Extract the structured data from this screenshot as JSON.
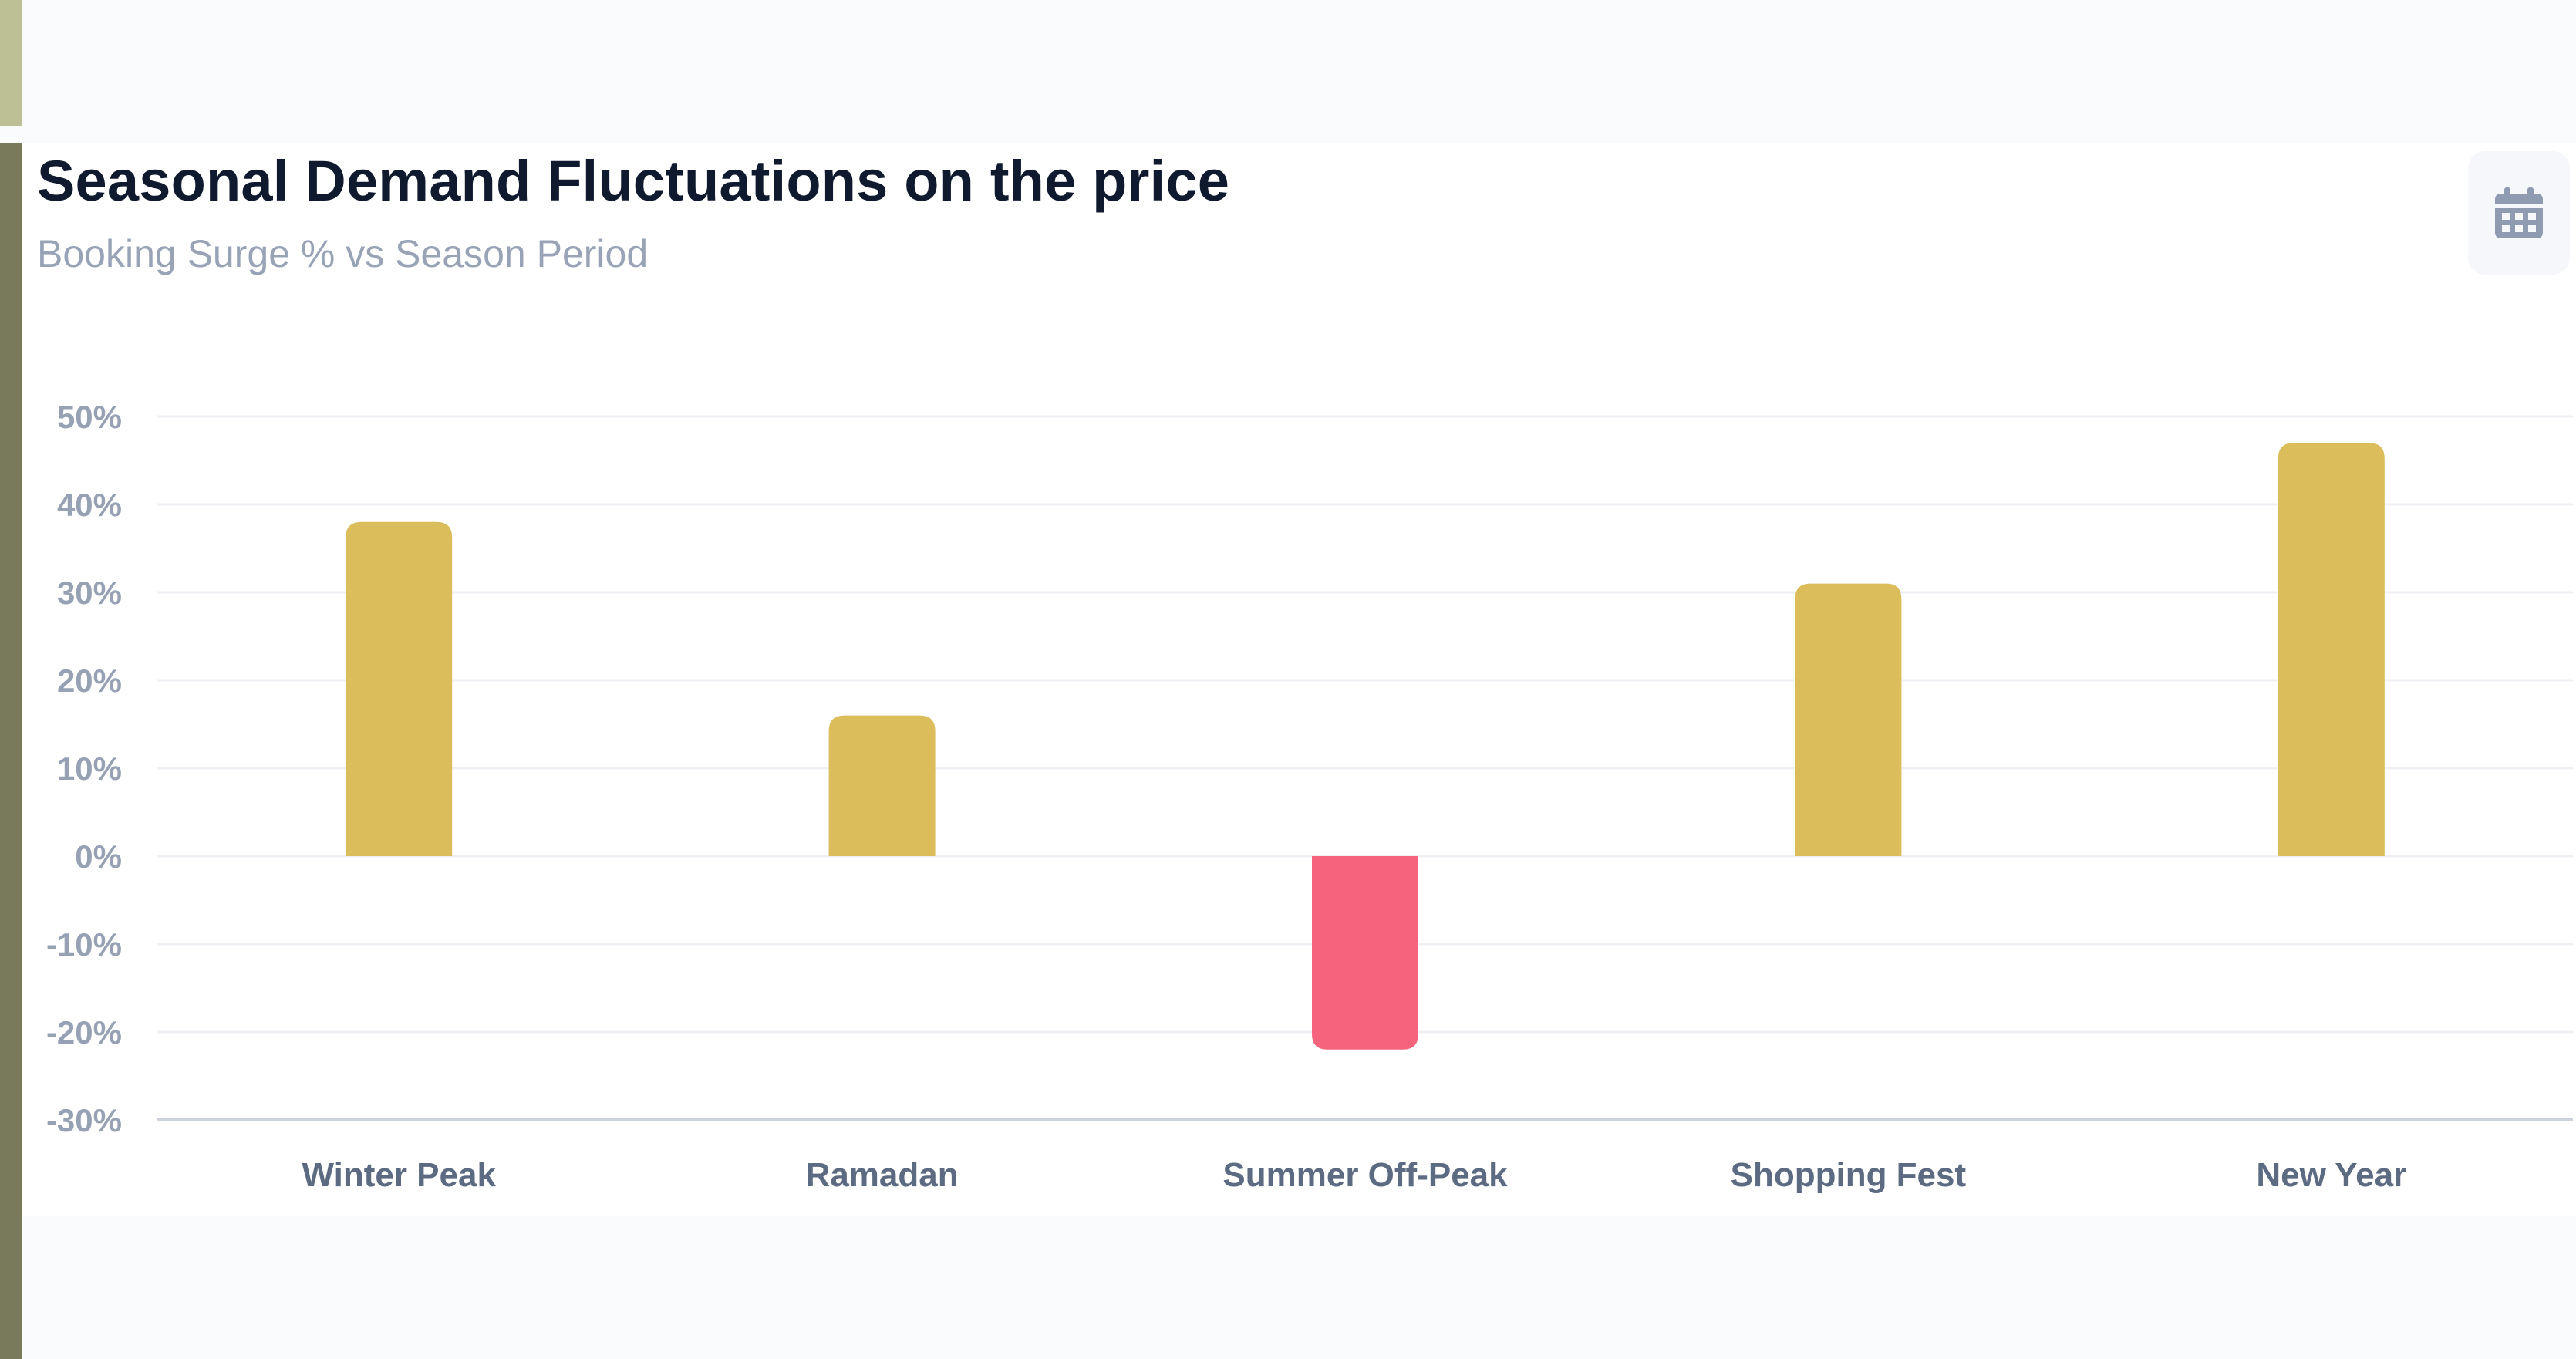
{
  "header": {
    "title": "Seasonal Demand Fluctuations on the price",
    "subtitle": "Booking Surge % vs Season Period",
    "calendar_icon": "calendar-icon"
  },
  "colors": {
    "positive": "#dcbd5c",
    "negative": "#f5637d",
    "tick_text": "#96a1b4",
    "category_text": "#5d6b82",
    "grid": "#eef0f4",
    "baseline": "#cdd3dd",
    "icon": "#8f9bb0"
  },
  "chart_data": {
    "type": "bar",
    "title": "Seasonal Demand Fluctuations on the price",
    "subtitle": "Booking Surge % vs Season Period",
    "xlabel": "",
    "ylabel": "",
    "categories": [
      "Winter Peak",
      "Ramadan",
      "Summer Off-Peak",
      "Shopping Fest",
      "New Year"
    ],
    "values": [
      38,
      16,
      -22,
      31,
      47
    ],
    "unit": "%",
    "ylim": [
      -30,
      50
    ],
    "yticks": [
      50,
      40,
      30,
      20,
      10,
      0,
      -10,
      -20,
      -30
    ],
    "ytick_labels": [
      "50%",
      "40%",
      "30%",
      "20%",
      "10%",
      "0%",
      "-10%",
      "-20%",
      "-30%"
    ],
    "grid": true,
    "legend": "none"
  }
}
